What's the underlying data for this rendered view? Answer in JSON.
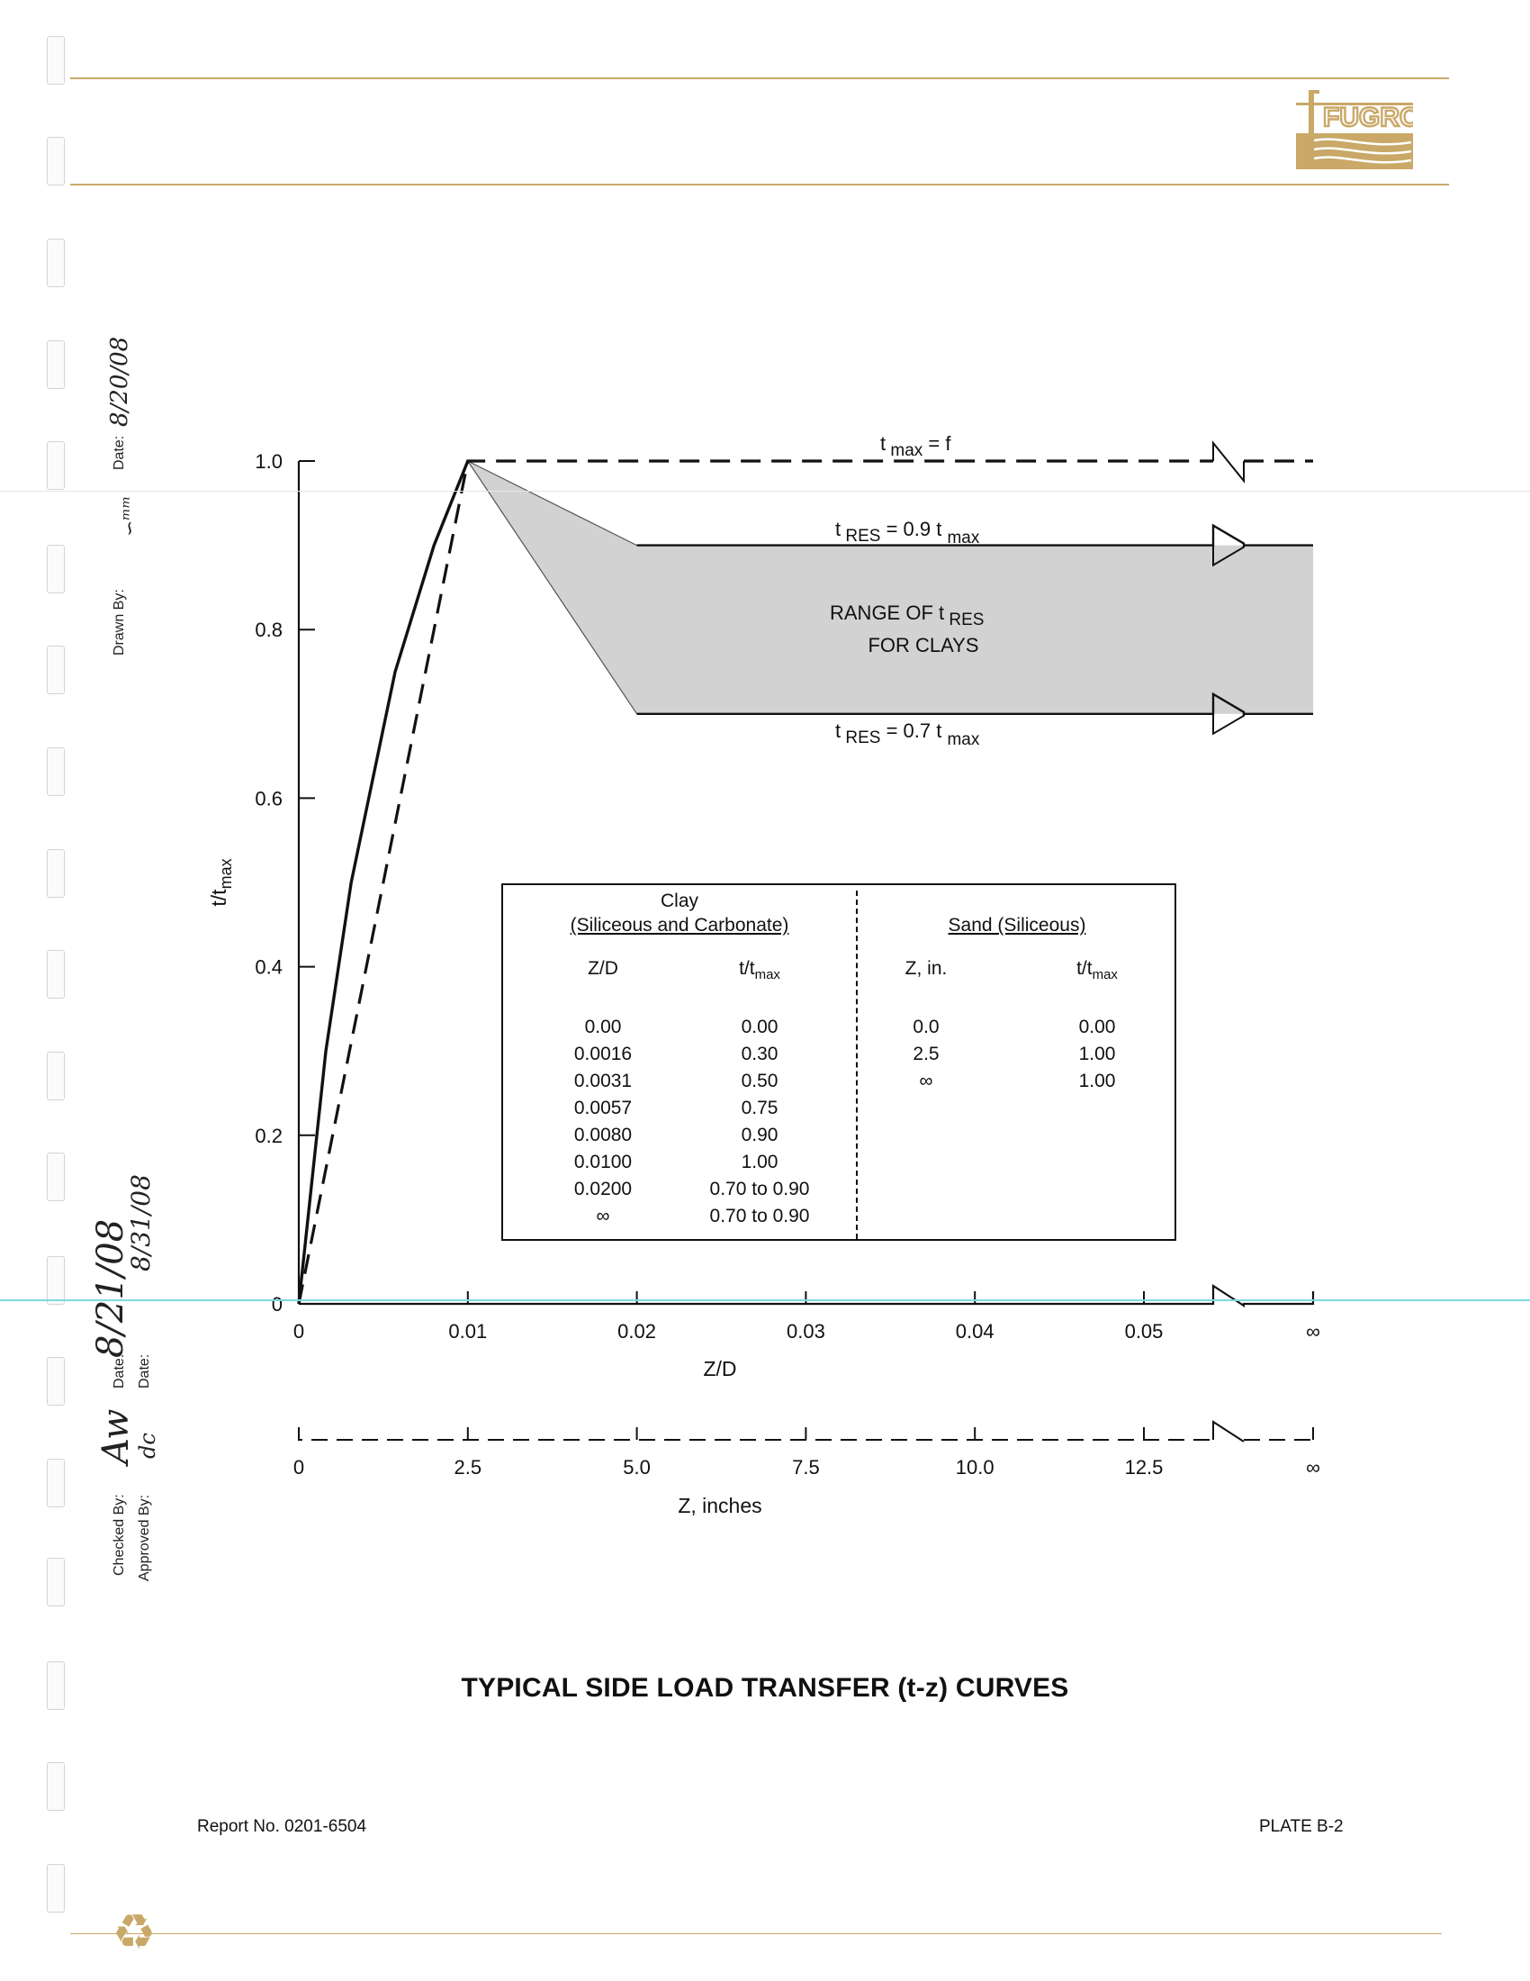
{
  "company": {
    "name": "FUGRO"
  },
  "sidebar": {
    "drawn_by_label": "Drawn By:",
    "drawn_by_date_label": "Date:",
    "drawn_by_date": "8/20/08",
    "checked_by_label": "Checked By:",
    "checked_by_date_label": "Date:",
    "checked_by_date": "8/21/08",
    "approved_by_label": "Approved By:",
    "approved_by_date_label": "Date:",
    "approved_by_date": "8/31/08"
  },
  "chart_data": {
    "type": "line",
    "ylabel_main": "t/t",
    "ylabel_sub": "max",
    "xlabel": "Z/D",
    "xlabel_secondary": "Z, inches",
    "ylim": [
      0,
      1.0
    ],
    "y_ticks": [
      "0",
      "0.2",
      "0.4",
      "0.6",
      "0.8",
      "1.0"
    ],
    "x_ticks": [
      "0",
      "0.01",
      "0.02",
      "0.03",
      "0.04",
      "0.05",
      "∞"
    ],
    "x_ticks_secondary": [
      "0",
      "2.5",
      "5.0",
      "7.5",
      "10.0",
      "12.5",
      "∞"
    ],
    "x_axis_break": "between 0.05 and ∞",
    "series": [
      {
        "name": "Clay (Siliceous and Carbonate)",
        "style": "solid",
        "points": [
          [
            0,
            0
          ],
          [
            0.0016,
            0.3
          ],
          [
            0.0031,
            0.5
          ],
          [
            0.0057,
            0.75
          ],
          [
            0.008,
            0.9
          ],
          [
            0.01,
            1.0
          ]
        ]
      },
      {
        "name": "Sand (Siliceous)",
        "style": "dashed",
        "points": [
          [
            0,
            0
          ],
          [
            0.01,
            1.0
          ],
          [
            0.06,
            1.0
          ]
        ]
      }
    ],
    "residual_range": {
      "upper": 0.9,
      "lower": 0.7,
      "start_upper": 0.02,
      "start_lower": 0.02
    },
    "annotations": {
      "tmax": {
        "t": "t",
        "sub": "max",
        "rest": " = f"
      },
      "tres_upper": {
        "t": "t",
        "sub": "RES",
        "rest": " = 0.9 t ",
        "sub2": "max"
      },
      "tres_lower": {
        "t": "t",
        "sub": "RES",
        "rest": " = 0.7 t ",
        "sub2": "max"
      },
      "range_line1": "RANGE OF t",
      "range_line1_sub": "RES",
      "range_line2": "FOR CLAYS"
    },
    "table": {
      "clay_title_1": "Clay",
      "clay_title_2": "(Siliceous and Carbonate)",
      "sand_title": "Sand (Siliceous)",
      "clay_col1": "Z/D",
      "clay_col2": "t/t",
      "clay_col2_sub": "max",
      "sand_col1": "Z, in.",
      "sand_col2": "t/t",
      "sand_col2_sub": "max",
      "clay_rows": [
        [
          "0.00",
          "0.00"
        ],
        [
          "0.0016",
          "0.30"
        ],
        [
          "0.0031",
          "0.50"
        ],
        [
          "0.0057",
          "0.75"
        ],
        [
          "0.0080",
          "0.90"
        ],
        [
          "0.0100",
          "1.00"
        ],
        [
          "0.0200",
          "0.70 to 0.90"
        ],
        [
          "∞",
          "0.70 to 0.90"
        ]
      ],
      "sand_rows": [
        [
          "0.0",
          "0.00"
        ],
        [
          "2.5",
          "1.00"
        ],
        [
          "∞",
          "1.00"
        ]
      ]
    }
  },
  "page": {
    "title": "TYPICAL SIDE LOAD TRANSFER (t-z) CURVES",
    "report_no": "Report No. 0201-6504",
    "plate": "PLATE B-2"
  },
  "colors": {
    "accent_rule": "#c9a868",
    "logo": "#c9a868",
    "shade": "#d2d2d2",
    "cyan_line": "#7fd8e0"
  }
}
